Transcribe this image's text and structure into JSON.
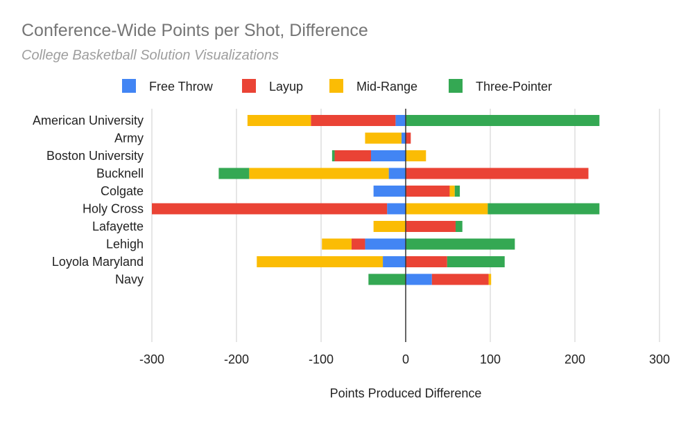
{
  "chart_data": {
    "type": "bar",
    "orientation": "horizontal",
    "stacked": true,
    "title": "Conference-Wide Points per Shot, Difference",
    "subtitle": "College Basketball Solution Visualizations",
    "xlabel": "Points Produced Difference",
    "ylabel": "",
    "xlim": [
      -300,
      300
    ],
    "xticks": [
      -300,
      -200,
      -100,
      0,
      100,
      200,
      300
    ],
    "grid": true,
    "legend_position": "top",
    "categories": [
      "American University",
      "Army",
      "Boston University",
      "Bucknell",
      "Colgate",
      "Holy Cross",
      "Lafayette",
      "Lehigh",
      "Loyola Maryland",
      "Navy"
    ],
    "series": [
      {
        "name": "Free Throw",
        "color": "#4285f4",
        "values": [
          -12,
          -5,
          -41,
          -20,
          -38,
          -22,
          0,
          -48,
          -27,
          31
        ]
      },
      {
        "name": "Layup",
        "color": "#ea4335",
        "values": [
          -100,
          6,
          -43,
          216,
          52,
          -278,
          59,
          -16,
          49,
          67
        ]
      },
      {
        "name": "Mid-Range",
        "color": "#fbbc04",
        "values": [
          -75,
          -43,
          24,
          -165,
          6,
          97,
          -38,
          -35,
          -149,
          3
        ]
      },
      {
        "name": "Three-Pointer",
        "color": "#34a853",
        "values": [
          229,
          0,
          -3,
          -36,
          6,
          132,
          8,
          129,
          68,
          -44
        ]
      }
    ]
  }
}
